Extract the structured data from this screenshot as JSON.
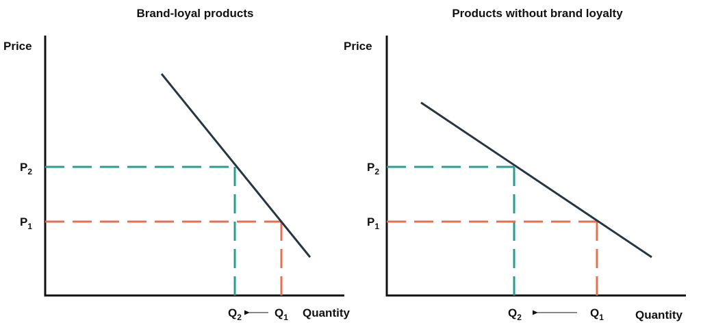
{
  "colors": {
    "p2_q2": "#2a9d8f",
    "p1_q1": "#e76f51",
    "demand_curve": "#253642",
    "axis": "#111111"
  },
  "panels": [
    {
      "title": "Brand-loyal products",
      "y_label": "Price",
      "x_label": "Quantity",
      "p2": {
        "main": "P",
        "sub": "2"
      },
      "p1": {
        "main": "P",
        "sub": "1"
      },
      "q2": {
        "main": "Q",
        "sub": "2"
      },
      "q1": {
        "main": "Q",
        "sub": "1"
      }
    },
    {
      "title": "Products without brand loyalty",
      "y_label": "Price",
      "x_label": "Quantity",
      "p2": {
        "main": "P",
        "sub": "2"
      },
      "p1": {
        "main": "P",
        "sub": "1"
      },
      "q2": {
        "main": "Q",
        "sub": "2"
      },
      "q1": {
        "main": "Q",
        "sub": "1"
      }
    }
  ]
}
